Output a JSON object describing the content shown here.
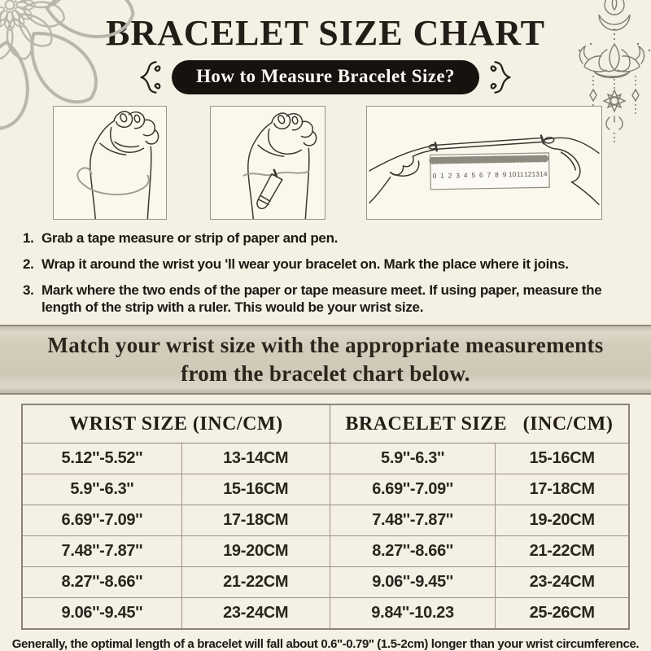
{
  "header": {
    "title": "BRACELET SIZE CHART",
    "badge": "How to Measure Bracelet Size?"
  },
  "steps": [
    {
      "num": "1.",
      "text": "Grab a tape measure or strip of paper and pen."
    },
    {
      "num": "2.",
      "text": "Wrap it around the wrist you 'll wear your bracelet on. Mark the place where it joins."
    },
    {
      "num": "3.",
      "text": "Mark where the two ends of the paper or tape measure meet. If using paper, measure the length of the strip with a ruler. This would be your wrist size."
    }
  ],
  "banner": {
    "line1": "Match your wrist size with the appropriate measurements",
    "line2": "from the bracelet chart below."
  },
  "table": {
    "headers": [
      "WRIST SIZE (INC/CM)",
      "BRACELET SIZE   (INC/CM)"
    ],
    "rows": [
      [
        "5.12''-5.52''",
        "13-14CM",
        "5.9''-6.3''",
        "15-16CM"
      ],
      [
        "5.9''-6.3''",
        "15-16CM",
        "6.69''-7.09''",
        "17-18CM"
      ],
      [
        "6.69''-7.09''",
        "17-18CM",
        "7.48''-7.87''",
        "19-20CM"
      ],
      [
        "7.48''-7.87''",
        "19-20CM",
        "8.27''-8.66''",
        "21-22CM"
      ],
      [
        "8.27''-8.66''",
        "21-22CM",
        "9.06''-9.45''",
        "23-24CM"
      ],
      [
        "9.06''-9.45''",
        "23-24CM",
        "9.84''-10.23",
        "25-26CM"
      ]
    ]
  },
  "footer": {
    "note": "Generally, the optimal length of a bracelet will fall about 0.6''-0.79'' (1.5-2cm) longer than your wrist circumference."
  },
  "illustrations": {
    "box1": "hand-with-tape-around-wrist",
    "box2": "hand-marking-wrist-with-pen",
    "box3": "hands-measuring-strip-with-ruler",
    "ruler_numbers": [
      "0",
      "1",
      "2",
      "3",
      "4",
      "5",
      "6",
      "7",
      "8",
      "9",
      "10",
      "11",
      "12",
      "13",
      "14"
    ]
  },
  "decorations": {
    "top_left": "mandala-flower",
    "top_right": "lotus-hanging-ornament",
    "badge_sides": "curly-brace-flourish"
  },
  "colors": {
    "background": "#f5f0e4",
    "ink": "#231f19",
    "badge_bg": "#16120d",
    "badge_text": "#fcfaf4",
    "banner_bg": "#d2cbba",
    "banner_border": "#8f877a",
    "table_border": "#8a8478",
    "line_art": "#3b362f",
    "decoration_gray": "#b9b6ae",
    "ornament_gray": "#7f7a72"
  }
}
